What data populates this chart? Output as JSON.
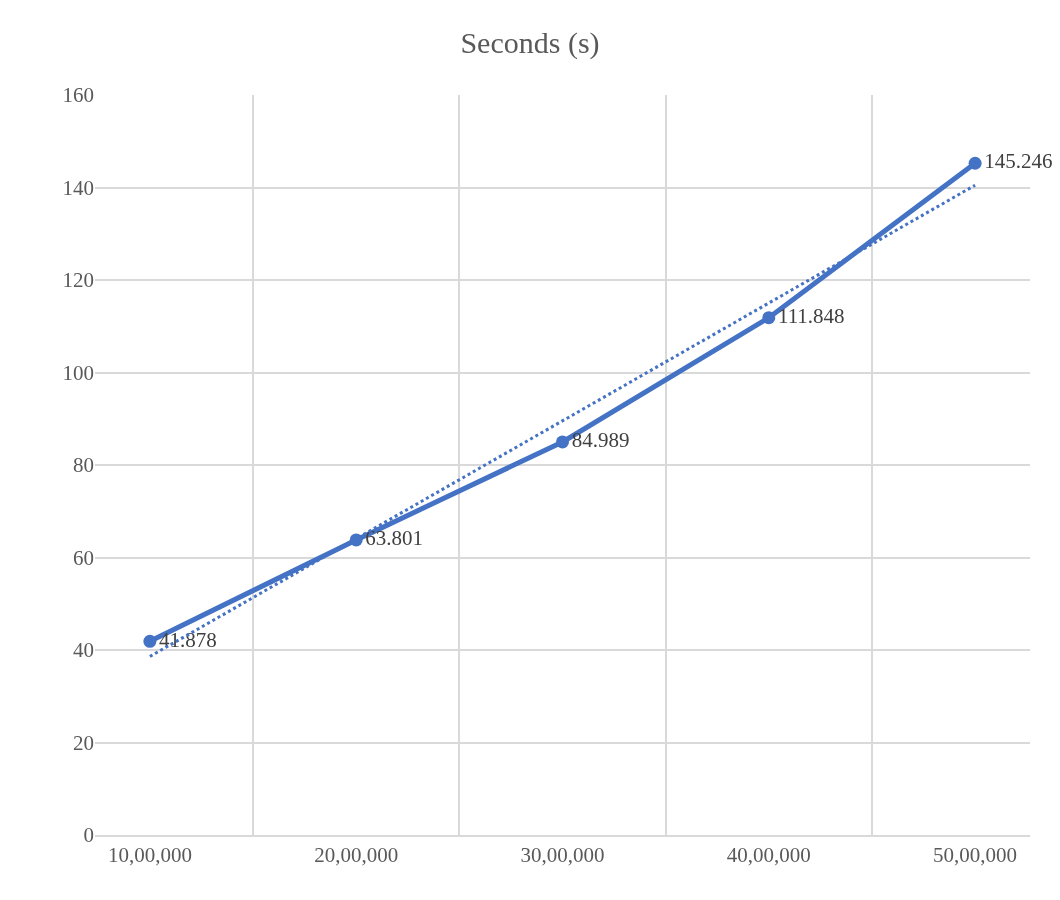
{
  "chart_data": {
    "type": "line",
    "title": "Seconds (s)",
    "categories": [
      "10,00,000",
      "20,00,000",
      "30,00,000",
      "40,00,000",
      "50,00,000"
    ],
    "series": [
      {
        "color": "#4472c4",
        "values": [
          41.878,
          63.801,
          84.989,
          111.848,
          145.246
        ],
        "marker": "circle",
        "line_style": "solid",
        "value_labels": [
          "41.878",
          "63.801",
          "84.989",
          "111.848",
          "145.246"
        ]
      },
      {
        "type": "line",
        "color": "#4472c4",
        "x": [
          "10,00,000",
          "50,00,000"
        ],
        "values": [
          38.6,
          140.5
        ],
        "marker": "none",
        "line_style": "dotted"
      }
    ],
    "ylim": [
      0,
      160
    ],
    "yticks": [
      0,
      20,
      40,
      60,
      80,
      100,
      120,
      140,
      160
    ],
    "grid": true,
    "legend": false
  }
}
